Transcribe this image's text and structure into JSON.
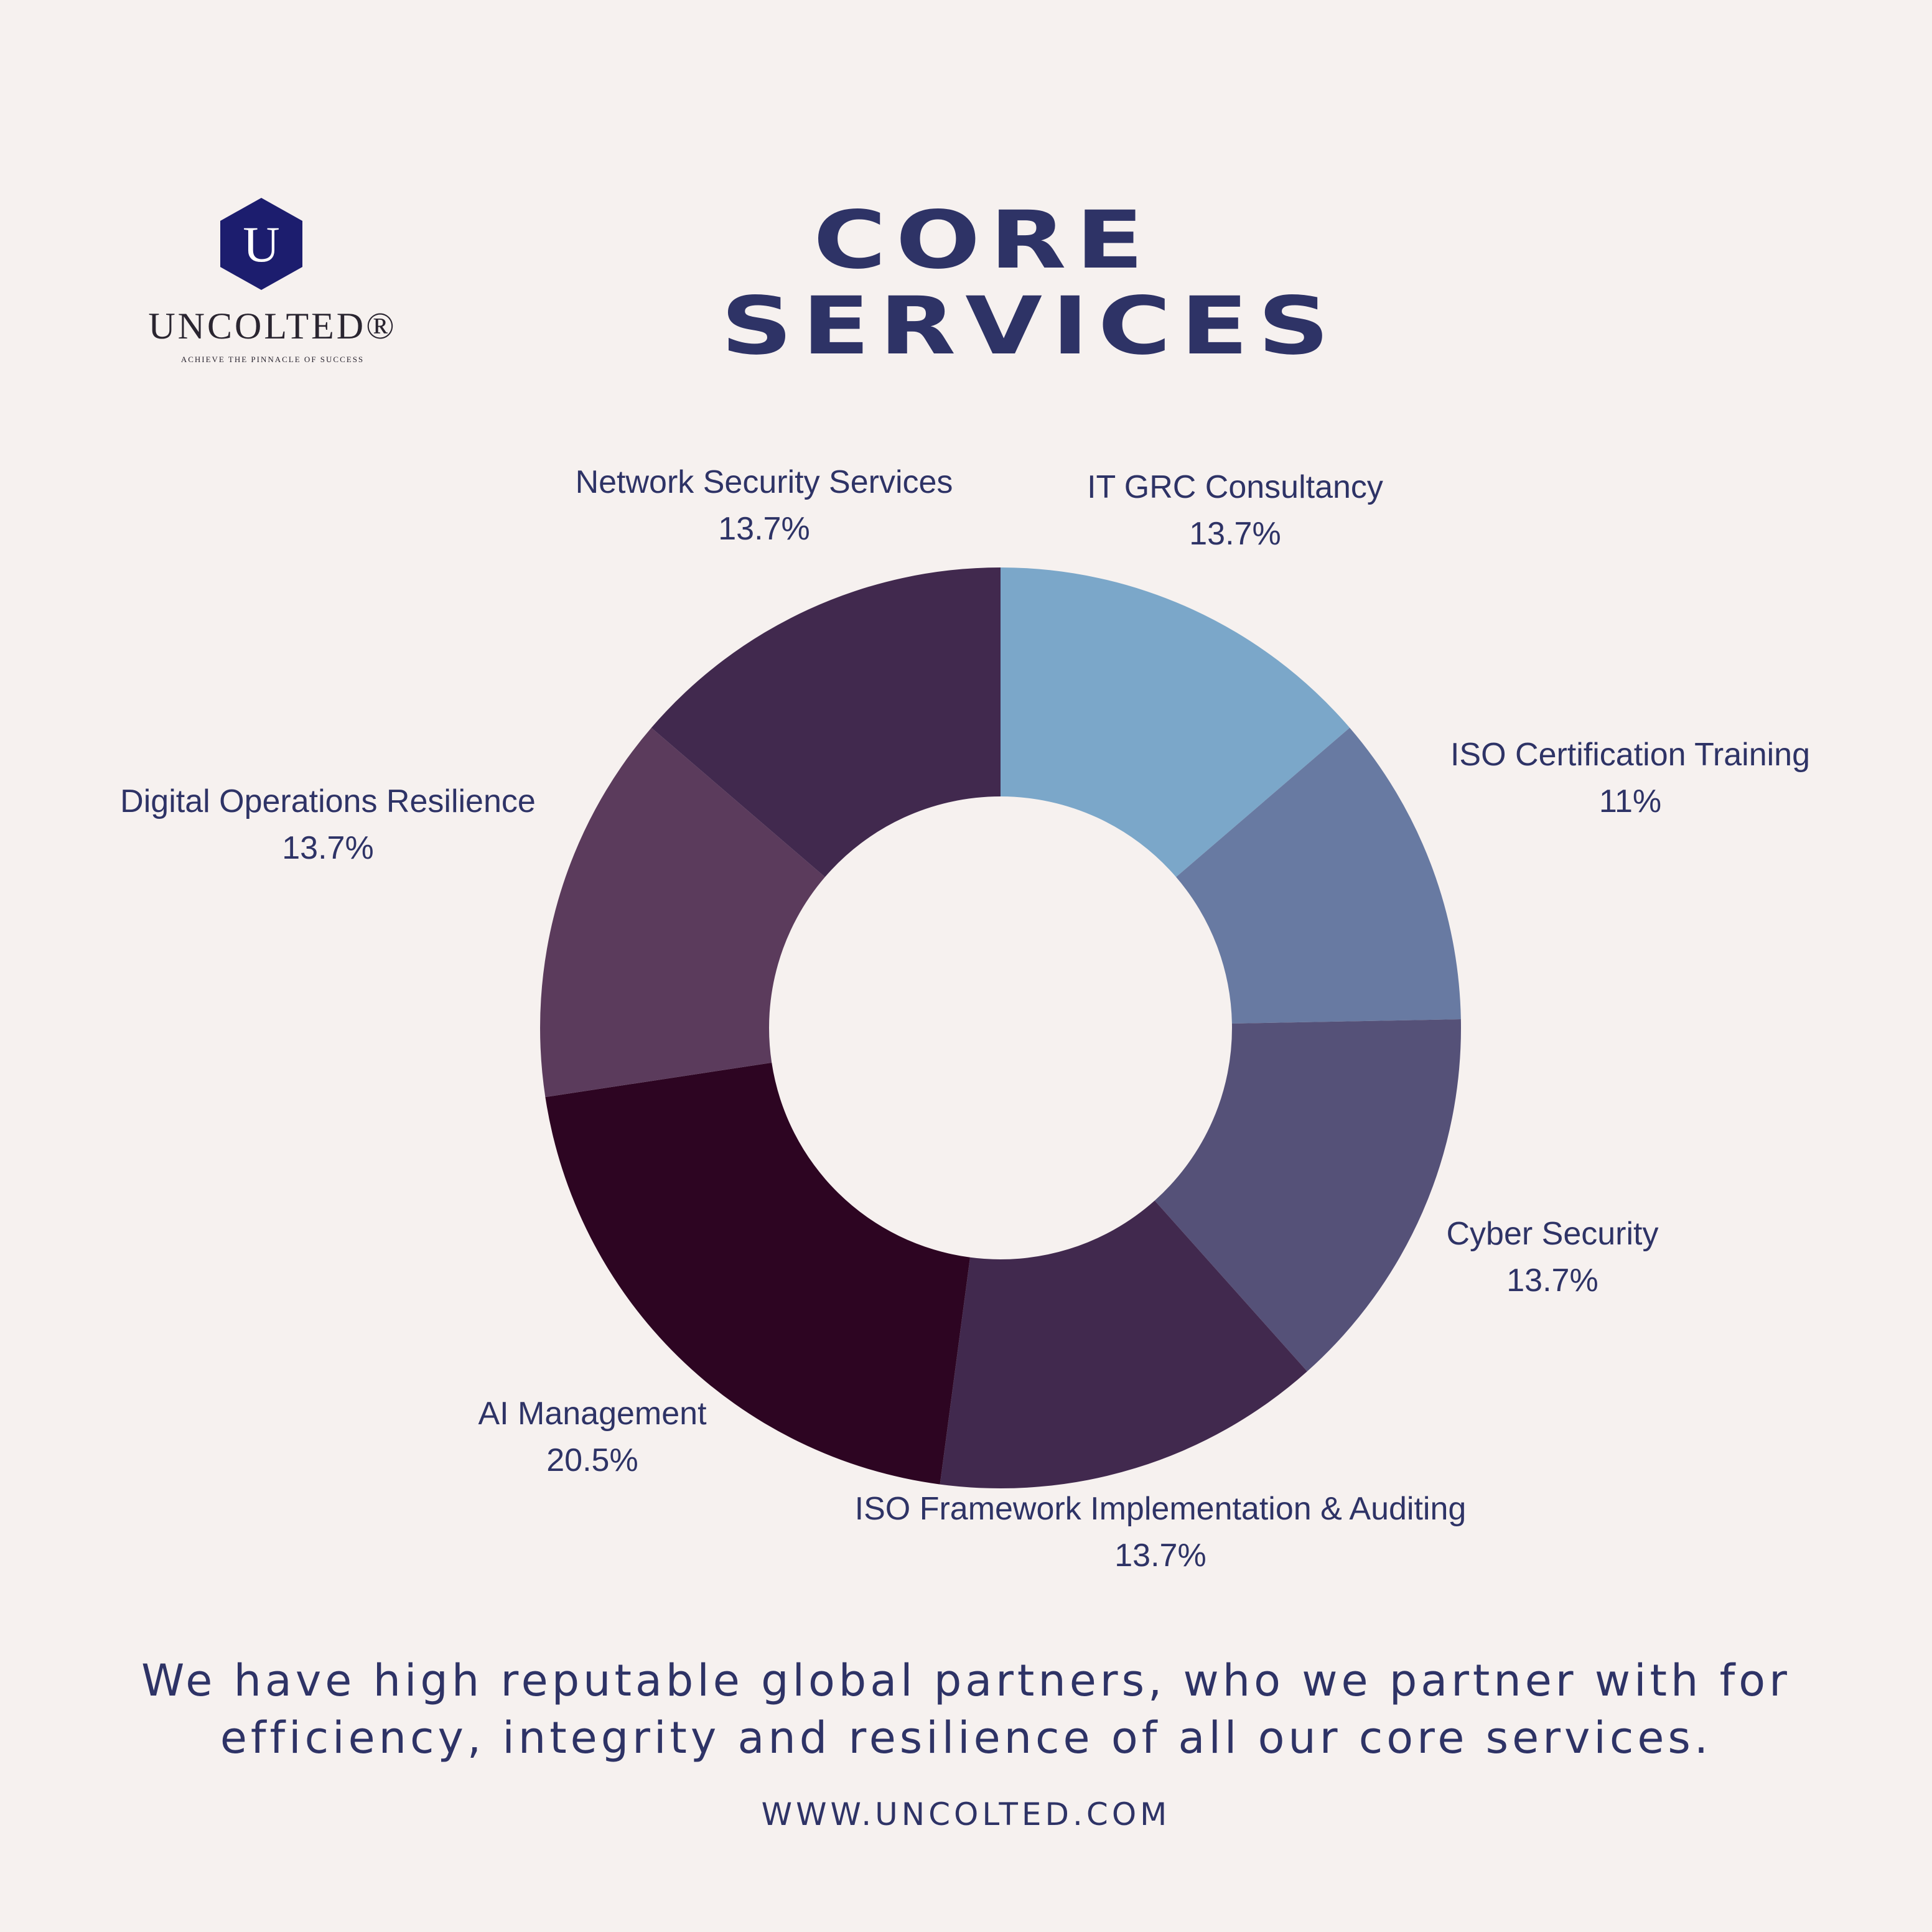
{
  "brand": {
    "logo_letter": "U",
    "name": "UNCOLTED®",
    "tagline": "ACHIEVE THE PINNACLE OF SUCCESS",
    "colors": {
      "hexagon": "#1c1d6e",
      "text": "#2a2530"
    }
  },
  "header": {
    "title_line_1": "CORE",
    "title_line_2": "SERVICES"
  },
  "colors": {
    "background": "#f6f1ef",
    "text": "#2e3366"
  },
  "chart_data": {
    "type": "pie",
    "donut": true,
    "title": "CORE SERVICES",
    "series": [
      {
        "name": "IT GRC Consultancy",
        "value": 13.7,
        "label": "13.7%",
        "color": "#7ba7c9"
      },
      {
        "name": "ISO Certification Training",
        "value": 11,
        "label": "11%",
        "color": "#687aa2"
      },
      {
        "name": "Cyber Security",
        "value": 13.7,
        "label": "13.7%",
        "color": "#555178"
      },
      {
        "name": "ISO Framework Implementation & Auditing",
        "value": 13.7,
        "label": "13.7%",
        "color": "#41294e"
      },
      {
        "name": "AI Management",
        "value": 20.5,
        "label": "20.5%",
        "color": "#2d0522"
      },
      {
        "name": "Digital Operations Resilience",
        "value": 13.7,
        "label": "13.7%",
        "color": "#5b3b5c"
      },
      {
        "name": "Network Security Services",
        "value": 13.7,
        "label": "13.7%",
        "color": "#41294e"
      }
    ]
  },
  "footer": {
    "line_1": "We have high reputable global partners, who we partner with for",
    "line_2": "efficiency, integrity and resilience of all our core services.",
    "website": "WWW.UNCOLTED.COM"
  }
}
